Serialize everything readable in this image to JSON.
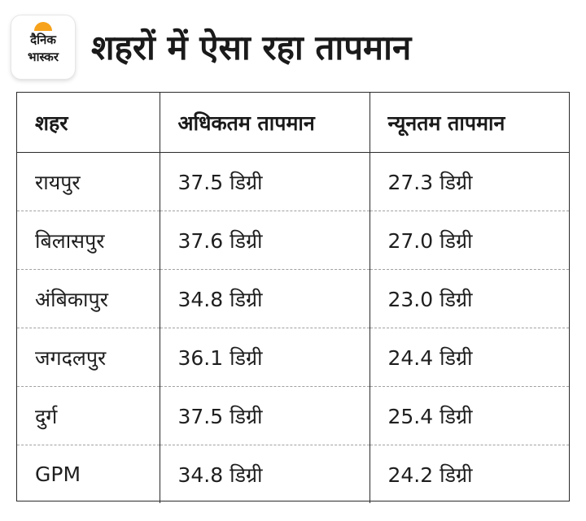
{
  "brand": {
    "line1": "दैनिक",
    "line2": "भास्कर",
    "accent_color": "#f7a21b"
  },
  "title": "शहरों में ऐसा रहा तापमान",
  "table": {
    "headers": [
      "शहर",
      "अधिकतम तापमान",
      "न्यूनतम तापमान"
    ],
    "rows": [
      [
        "रायपुर",
        "37.5 डिग्री",
        "27.3 डिग्री"
      ],
      [
        "बिलासपुर",
        "37.6 डिग्री",
        "27.0 डिग्री"
      ],
      [
        "अंबिकापुर",
        "34.8 डिग्री",
        "23.0 डिग्री"
      ],
      [
        "जगदलपुर",
        "36.1 डिग्री",
        "24.4 डिग्री"
      ],
      [
        "दुर्ग",
        "37.5 डिग्री",
        "25.4 डिग्री"
      ],
      [
        "GPM",
        "34.8 डिग्री",
        "24.2 डिग्री"
      ]
    ]
  }
}
